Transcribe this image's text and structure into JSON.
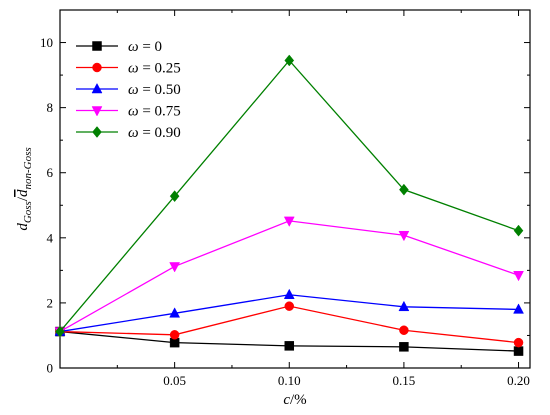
{
  "chart_data": {
    "type": "line",
    "title": "",
    "xlabel_main": "c",
    "xlabel_unit": "/%",
    "ylabel": {
      "d": "d",
      "sub1": "Goss",
      "sep": "/",
      "dbar": "d",
      "sub2": "non-Goss"
    },
    "xlim": [
      0.0,
      0.205
    ],
    "ylim": [
      0,
      11
    ],
    "xticks": [
      0.05,
      0.1,
      0.15,
      0.2
    ],
    "xtick_labels": [
      "0.05",
      "0.10",
      "0.15",
      "0.20"
    ],
    "yticks": [
      0,
      2,
      4,
      6,
      8,
      10
    ],
    "ytick_labels": [
      "0",
      "2",
      "4",
      "6",
      "8",
      "10"
    ],
    "legend_position": "top-left",
    "grid": false,
    "x": [
      0.0,
      0.05,
      0.1,
      0.15,
      0.2
    ],
    "series": [
      {
        "name": "ω = 0",
        "color": "#000000",
        "marker": "square",
        "values": [
          1.12,
          0.78,
          0.68,
          0.65,
          0.52
        ]
      },
      {
        "name": "ω = 0.25",
        "color": "#ff0000",
        "marker": "circle",
        "values": [
          1.12,
          1.02,
          1.9,
          1.16,
          0.78
        ]
      },
      {
        "name": "ω = 0.50",
        "color": "#0000ff",
        "marker": "triangle-up",
        "values": [
          1.12,
          1.68,
          2.25,
          1.88,
          1.8
        ]
      },
      {
        "name": "ω = 0.75",
        "color": "#ff00ff",
        "marker": "triangle-down",
        "values": [
          1.12,
          3.12,
          4.52,
          4.08,
          2.85
        ]
      },
      {
        "name": "ω = 0.90",
        "color": "#008000",
        "marker": "diamond",
        "values": [
          1.12,
          5.28,
          9.45,
          5.48,
          4.22
        ]
      }
    ]
  }
}
